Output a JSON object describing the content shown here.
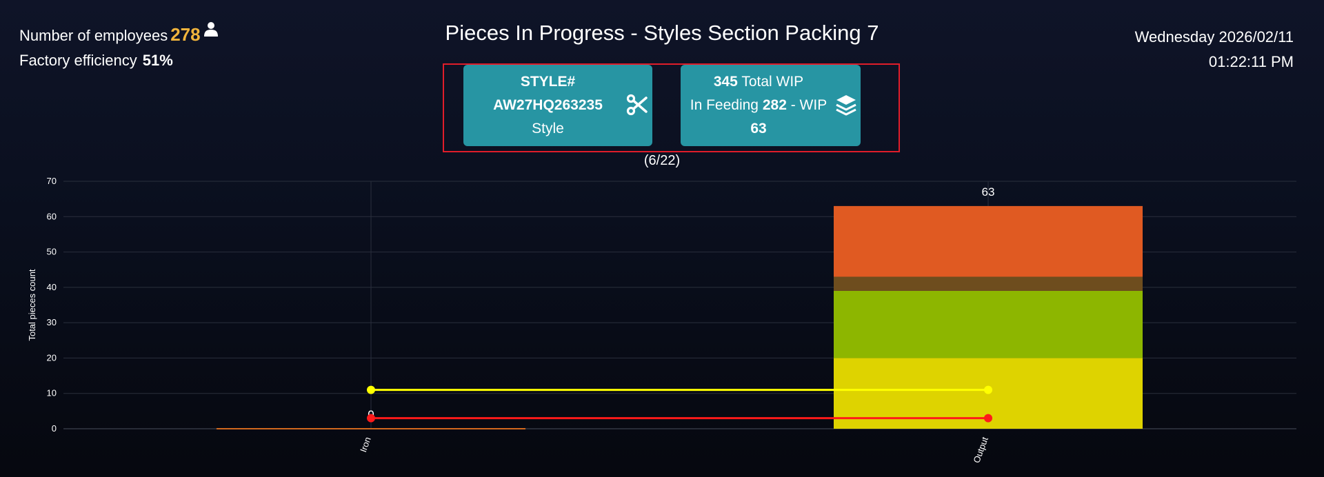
{
  "header": {
    "employees_label": "Number of employees",
    "employees_count": "278",
    "efficiency_label": "Factory efficiency",
    "efficiency_value": "51%",
    "title": "Pieces In Progress - Styles Section Packing 7",
    "date": "Wednesday 2026/02/11",
    "time": "01:22:11 PM"
  },
  "cards": {
    "style": {
      "label": "STYLE#",
      "code": "AW27HQ263235",
      "caption": "Style",
      "icon": "scissors-icon"
    },
    "wip": {
      "total": "345",
      "total_label": "Total WIP",
      "feeding_label": "In Feeding",
      "feeding_value": "282",
      "wip_label": "- WIP",
      "wip_value": "63",
      "icon": "layers-icon"
    }
  },
  "pager": "(6/22)",
  "icons": {
    "user": "user-icon"
  },
  "chart_data": {
    "type": "bar",
    "categories": [
      "Iron",
      "Output"
    ],
    "ylabel": "Total pieces count",
    "ylim": [
      0,
      70
    ],
    "yticks": [
      0,
      10,
      20,
      30,
      40,
      50,
      60,
      70
    ],
    "grid": true,
    "stacked": true,
    "total_labels": [
      "0",
      "63"
    ],
    "series": [
      {
        "values": [
          0,
          20
        ],
        "color": "#ded300"
      },
      {
        "values": [
          0,
          19
        ],
        "color": "#8db600"
      },
      {
        "values": [
          0,
          4
        ],
        "color": "#6e4d1e"
      },
      {
        "values": [
          0,
          20
        ],
        "color": "#e05a22"
      }
    ],
    "lines": [
      {
        "values": [
          11,
          11
        ],
        "color": "#ffff00"
      },
      {
        "values": [
          3,
          3
        ],
        "color": "#ff1a1a"
      }
    ],
    "zero_bar_color": "#d2691e"
  }
}
